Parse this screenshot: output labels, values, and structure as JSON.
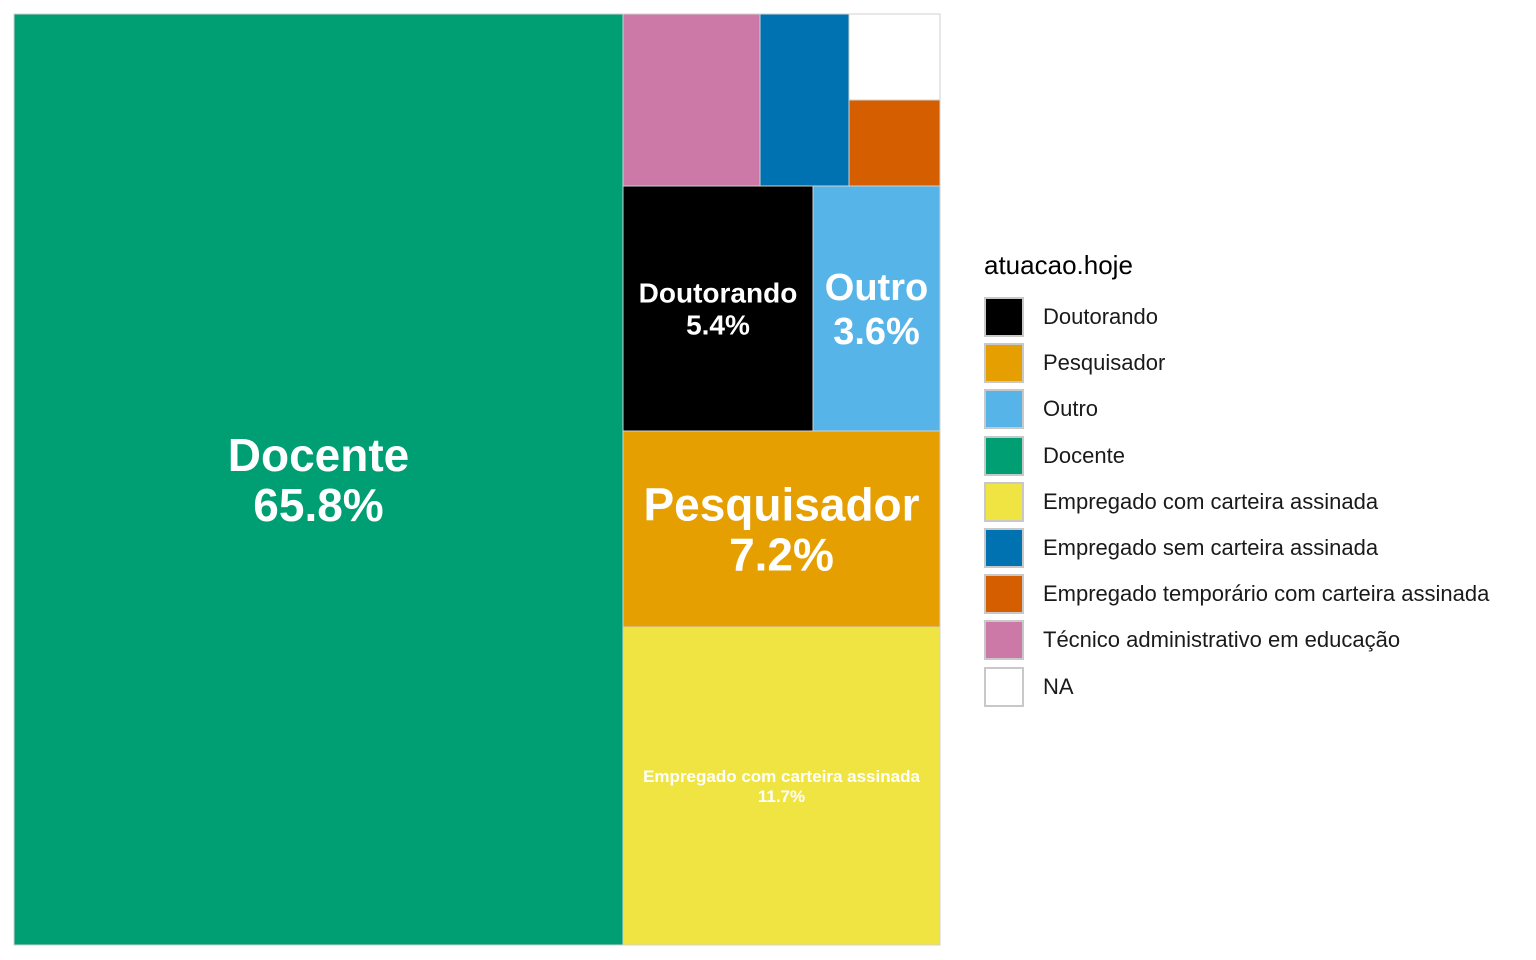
{
  "chart_data": {
    "type": "treemap",
    "title": "",
    "legend_title": "atuacao.hoje",
    "legend_position": "right",
    "categories": [
      "Doutorando",
      "Pesquisador",
      "Outro",
      "Docente",
      "Empregado com carteira assinada",
      "Empregado sem carteira assinada",
      "Empregado temporário com carteira assinada",
      "Técnico administrativo em educação",
      "NA"
    ],
    "colors": {
      "Doutorando": "#000000",
      "Pesquisador": "#E69F00",
      "Outro": "#56B4E9",
      "Docente": "#009E73",
      "Empregado com carteira assinada": "#F0E442",
      "Empregado sem carteira assinada": "#0072B2",
      "Empregado temporário com carteira assinada": "#D55E00",
      "Técnico administrativo em educação": "#CC79A7",
      "NA": "#FFFFFF"
    },
    "values_percent": {
      "Docente": 65.8,
      "Empregado com carteira assinada": 11.7,
      "Pesquisador": 7.2,
      "Doutorando": 5.4,
      "Outro": 3.6,
      "Técnico administrativo em educação": 2.7,
      "Empregado sem carteira assinada": 1.8,
      "Empregado temporário com carteira assinada": 0.9,
      "NA": 0.9
    },
    "labels": {
      "Docente": {
        "name": "Docente",
        "pct": "65.8%"
      },
      "Empregado com carteira assinada": {
        "name": "Empregado com carteira assinada",
        "pct": "11.7%"
      },
      "Pesquisador": {
        "name": "Pesquisador",
        "pct": "7.2%"
      },
      "Doutorando": {
        "name": "Doutorando",
        "pct": "5.4%"
      },
      "Outro": {
        "name": "Outro",
        "pct": "3.6%"
      }
    }
  }
}
